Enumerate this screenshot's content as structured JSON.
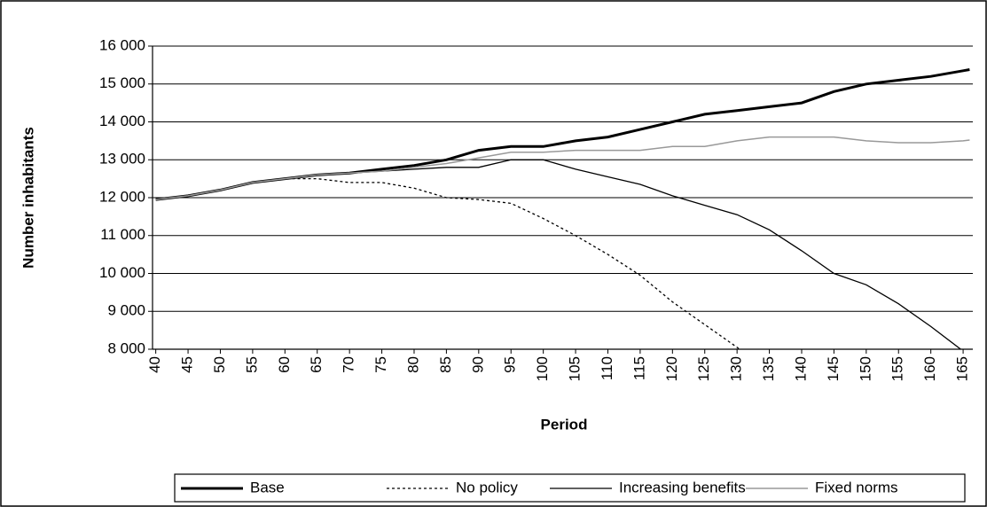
{
  "chart_data": {
    "type": "line",
    "x_label": "Period",
    "y_label": "Number inhabitants",
    "x": [
      40,
      45,
      50,
      55,
      60,
      65,
      70,
      75,
      80,
      85,
      90,
      95,
      100,
      105,
      110,
      115,
      120,
      125,
      130,
      135,
      140,
      145,
      150,
      155,
      160,
      165,
      166
    ],
    "series": [
      {
        "name": "Base",
        "color": "#000000",
        "width": 3,
        "dash": "none",
        "values": [
          11950,
          12050,
          12200,
          12400,
          12500,
          12600,
          12650,
          12750,
          12850,
          13000,
          13250,
          13350,
          13350,
          13500,
          13600,
          13800,
          14000,
          14200,
          14300,
          14400,
          14500,
          14800,
          15000,
          15100,
          15200,
          15350,
          15380
        ]
      },
      {
        "name": "No policy",
        "color": "#000000",
        "width": 1.3,
        "dash": "3 3",
        "values": [
          11950,
          12050,
          12200,
          12400,
          12500,
          12500,
          12400,
          12400,
          12250,
          12000,
          11950,
          11850,
          11450,
          11000,
          10500,
          9950,
          9250,
          8650,
          8050,
          7400,
          null,
          null,
          null,
          null,
          null,
          null,
          null
        ]
      },
      {
        "name": "Increasing benefits",
        "color": "#000000",
        "width": 1.3,
        "dash": "none",
        "values": [
          11950,
          12050,
          12200,
          12400,
          12500,
          12600,
          12650,
          12700,
          12750,
          12800,
          12800,
          13000,
          13000,
          12750,
          12550,
          12350,
          12050,
          11800,
          11550,
          11150,
          10600,
          10000,
          9700,
          9200,
          8600,
          7950,
          7850
        ]
      },
      {
        "name": "Fixed norms",
        "color": "#999999",
        "width": 1.5,
        "dash": "none",
        "values": [
          11950,
          12050,
          12200,
          12400,
          12500,
          12600,
          12650,
          12700,
          12800,
          12900,
          13050,
          13200,
          13200,
          13250,
          13250,
          13250,
          13350,
          13350,
          13500,
          13600,
          13600,
          13600,
          13500,
          13450,
          13450,
          13500,
          13520
        ]
      }
    ],
    "xlim": [
      39.5,
      166.5
    ],
    "ylim": [
      8000,
      16000
    ],
    "xticks": [
      40,
      45,
      50,
      55,
      60,
      65,
      70,
      75,
      80,
      85,
      90,
      95,
      100,
      105,
      110,
      115,
      120,
      125,
      130,
      135,
      140,
      145,
      150,
      155,
      160,
      165
    ],
    "yticks": [
      {
        "value": 8000,
        "label": "8 000"
      },
      {
        "value": 9000,
        "label": "9 000"
      },
      {
        "value": 10000,
        "label": "10 000"
      },
      {
        "value": 11000,
        "label": "11 000"
      },
      {
        "value": 12000,
        "label": "12 000"
      },
      {
        "value": 13000,
        "label": "13 000"
      },
      {
        "value": 14000,
        "label": "14 000"
      },
      {
        "value": 15000,
        "label": "15 000"
      },
      {
        "value": 16000,
        "label": "16 000"
      }
    ],
    "grid": true,
    "legend": "bottom"
  }
}
